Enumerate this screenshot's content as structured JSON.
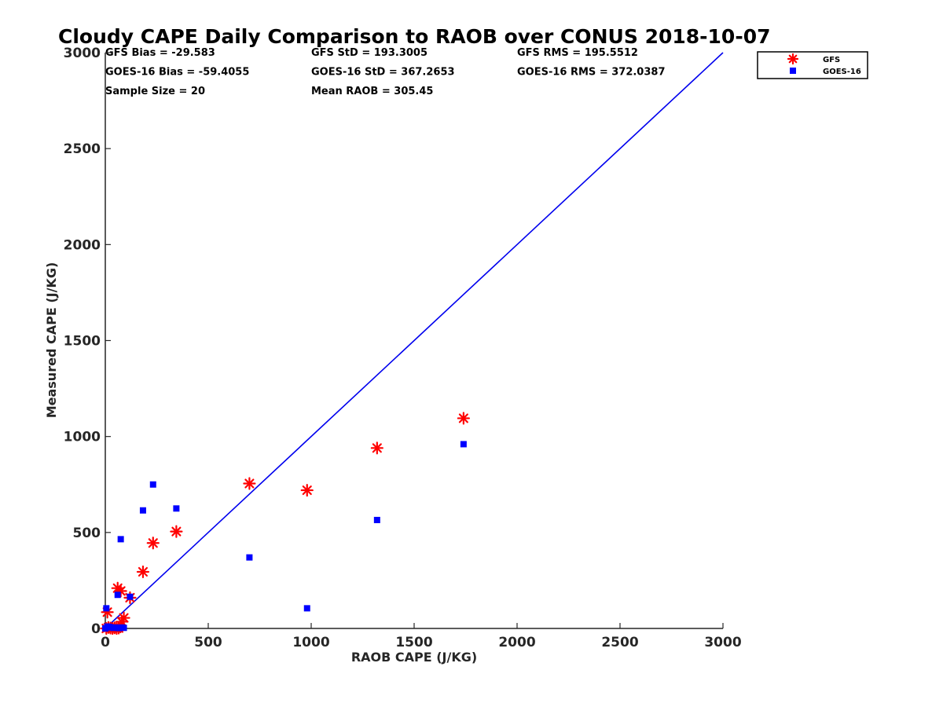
{
  "chart_data": {
    "type": "scatter",
    "title": "Cloudy CAPE Daily Comparison to RAOB over CONUS 2018-10-07",
    "xlabel": "RAOB CAPE (J/KG)",
    "ylabel": "Measured CAPE (J/KG)",
    "xlim": [
      0,
      3000
    ],
    "ylim": [
      0,
      3000
    ],
    "xticks": [
      "0",
      "500",
      "1000",
      "1500",
      "2000",
      "2500",
      "3000"
    ],
    "yticks": [
      "0",
      "500",
      "1000",
      "1500",
      "2000",
      "2500",
      "3000"
    ],
    "grid": false,
    "legend_position": "top-right",
    "stats": [
      [
        "GFS Bias = -29.583",
        "GFS StD = 193.3005",
        "GFS RMS = 195.5512"
      ],
      [
        "GOES-16 Bias = -59.4055",
        "GOES-16 StD = 367.2653",
        "GOES-16 RMS = 372.0387"
      ],
      [
        "Sample Size = 20",
        "Mean RAOB = 305.45",
        ""
      ]
    ],
    "one_to_one_line": {
      "x": [
        0,
        3000
      ],
      "y": [
        0,
        3000
      ],
      "color": "#0000ee"
    },
    "series": [
      {
        "name": "GFS",
        "marker": "asterisk",
        "color": "#ff0000",
        "x": [
          1740,
          1320,
          980,
          700,
          345,
          232,
          183,
          60,
          75,
          120,
          90,
          80,
          10,
          5,
          15,
          25,
          35,
          45,
          55,
          65
        ],
        "y": [
          1095,
          940,
          720,
          755,
          505,
          445,
          295,
          210,
          195,
          160,
          55,
          35,
          85,
          0,
          5,
          2,
          0,
          3,
          0,
          2
        ]
      },
      {
        "name": "GOES-16",
        "marker": "square",
        "color": "#0000ff",
        "x": [
          1740,
          1320,
          980,
          700,
          345,
          232,
          183,
          75,
          60,
          120,
          5,
          10,
          20,
          30,
          40,
          50,
          65,
          80,
          90,
          0
        ],
        "y": [
          960,
          565,
          105,
          370,
          625,
          750,
          615,
          465,
          175,
          165,
          105,
          10,
          8,
          5,
          3,
          5,
          2,
          5,
          3,
          0
        ]
      }
    ]
  }
}
